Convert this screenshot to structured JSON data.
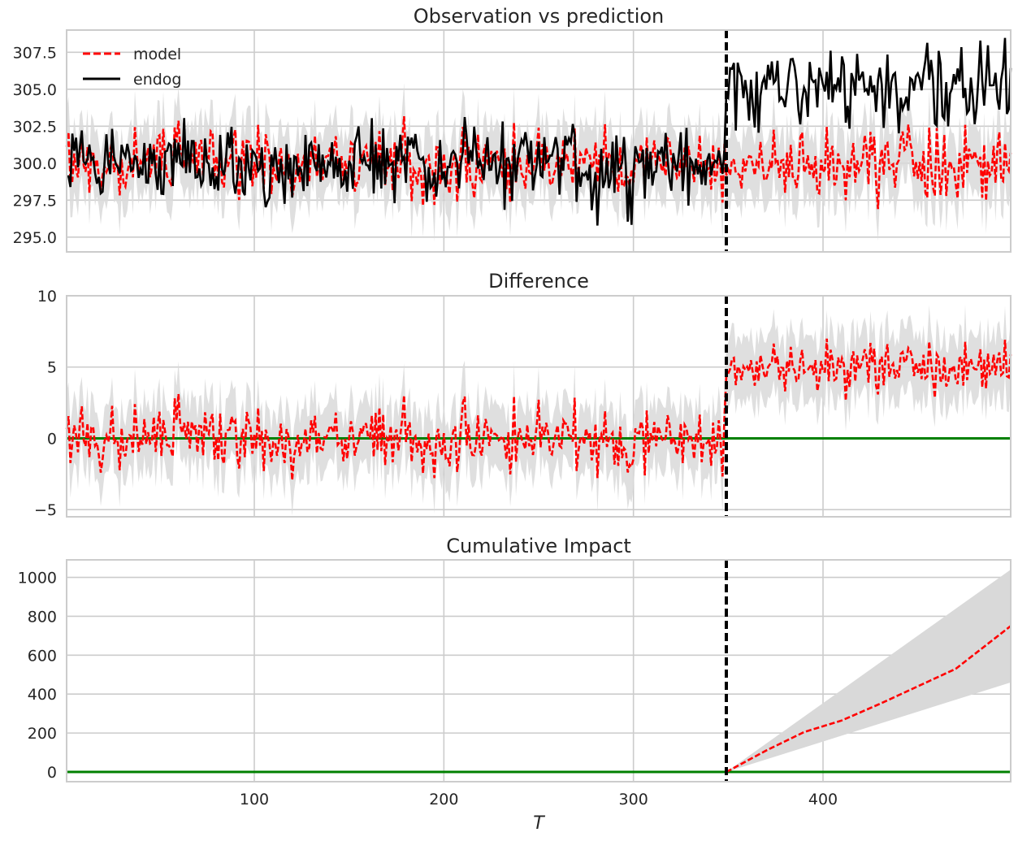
{
  "chart_data": [
    {
      "type": "line",
      "title": "Observation vs prediction",
      "xlabel": "",
      "ylabel": "",
      "xlim": [
        1,
        499
      ],
      "ylim": [
        294.0,
        309.0
      ],
      "yticks": [
        295.0,
        297.5,
        300.0,
        302.5,
        305.0,
        307.5
      ],
      "ytick_labels": [
        "295.0",
        "297.5",
        "300.0",
        "302.5",
        "305.0",
        "307.5"
      ],
      "xticks": [
        100,
        200,
        300,
        400
      ],
      "xtick_labels": [
        "",
        "",
        "",
        ""
      ],
      "intervention_t": 349,
      "grid": true,
      "legend": {
        "position": "top-left",
        "entries": [
          "model",
          "endog"
        ]
      },
      "series": [
        {
          "name": "model",
          "style": "dashed",
          "color": "#ff0000",
          "pre_mean": 300.0,
          "pre_std": 1.2,
          "post_mean": 300.0,
          "post_std": 1.2,
          "band_halfwidth": 2.0
        },
        {
          "name": "endog",
          "style": "solid",
          "color": "#000000",
          "pre_mean": 300.0,
          "pre_std": 1.4,
          "post_mean": 305.0,
          "post_std": 1.4
        }
      ]
    },
    {
      "type": "line",
      "title": "Difference",
      "xlabel": "",
      "ylabel": "",
      "xlim": [
        1,
        499
      ],
      "ylim": [
        -5.5,
        10.0
      ],
      "yticks": [
        -5,
        0,
        5,
        10
      ],
      "ytick_labels": [
        "−5",
        "0",
        "5",
        "10"
      ],
      "xticks": [
        100,
        200,
        300,
        400
      ],
      "xtick_labels": [
        "",
        "",
        "",
        ""
      ],
      "intervention_t": 349,
      "grid": true,
      "zero_line_color": "#008000",
      "series": [
        {
          "name": "",
          "style": "dashed",
          "color": "#ff0000",
          "pre_mean": 0.0,
          "pre_std": 1.2,
          "post_mean": 5.0,
          "post_std": 0.9,
          "band_halfwidth": 2.0
        }
      ]
    },
    {
      "type": "line",
      "title": "Cumulative Impact",
      "xlabel": "T",
      "ylabel": "",
      "xlim": [
        1,
        499
      ],
      "ylim": [
        -50,
        1090
      ],
      "yticks": [
        0,
        200,
        400,
        600,
        800,
        1000
      ],
      "ytick_labels": [
        "0",
        "200",
        "400",
        "600",
        "800",
        "1000"
      ],
      "xticks": [
        100,
        200,
        300,
        400
      ],
      "xtick_labels": [
        "100",
        "200",
        "300",
        "400"
      ],
      "intervention_t": 349,
      "grid": true,
      "zero_line_color": "#008000",
      "series": [
        {
          "name": "",
          "style": "dashed",
          "color": "#ff0000",
          "points": [
            [
              349,
              0
            ],
            [
              370,
              110
            ],
            [
              390,
              205
            ],
            [
              410,
              265
            ],
            [
              430,
              350
            ],
            [
              450,
              440
            ],
            [
              470,
              530
            ],
            [
              499,
              750
            ]
          ]
        }
      ],
      "band": {
        "upper": [
          [
            349,
            0
          ],
          [
            499,
            1040
          ]
        ],
        "lower": [
          [
            349,
            0
          ],
          [
            499,
            460
          ]
        ]
      }
    }
  ]
}
